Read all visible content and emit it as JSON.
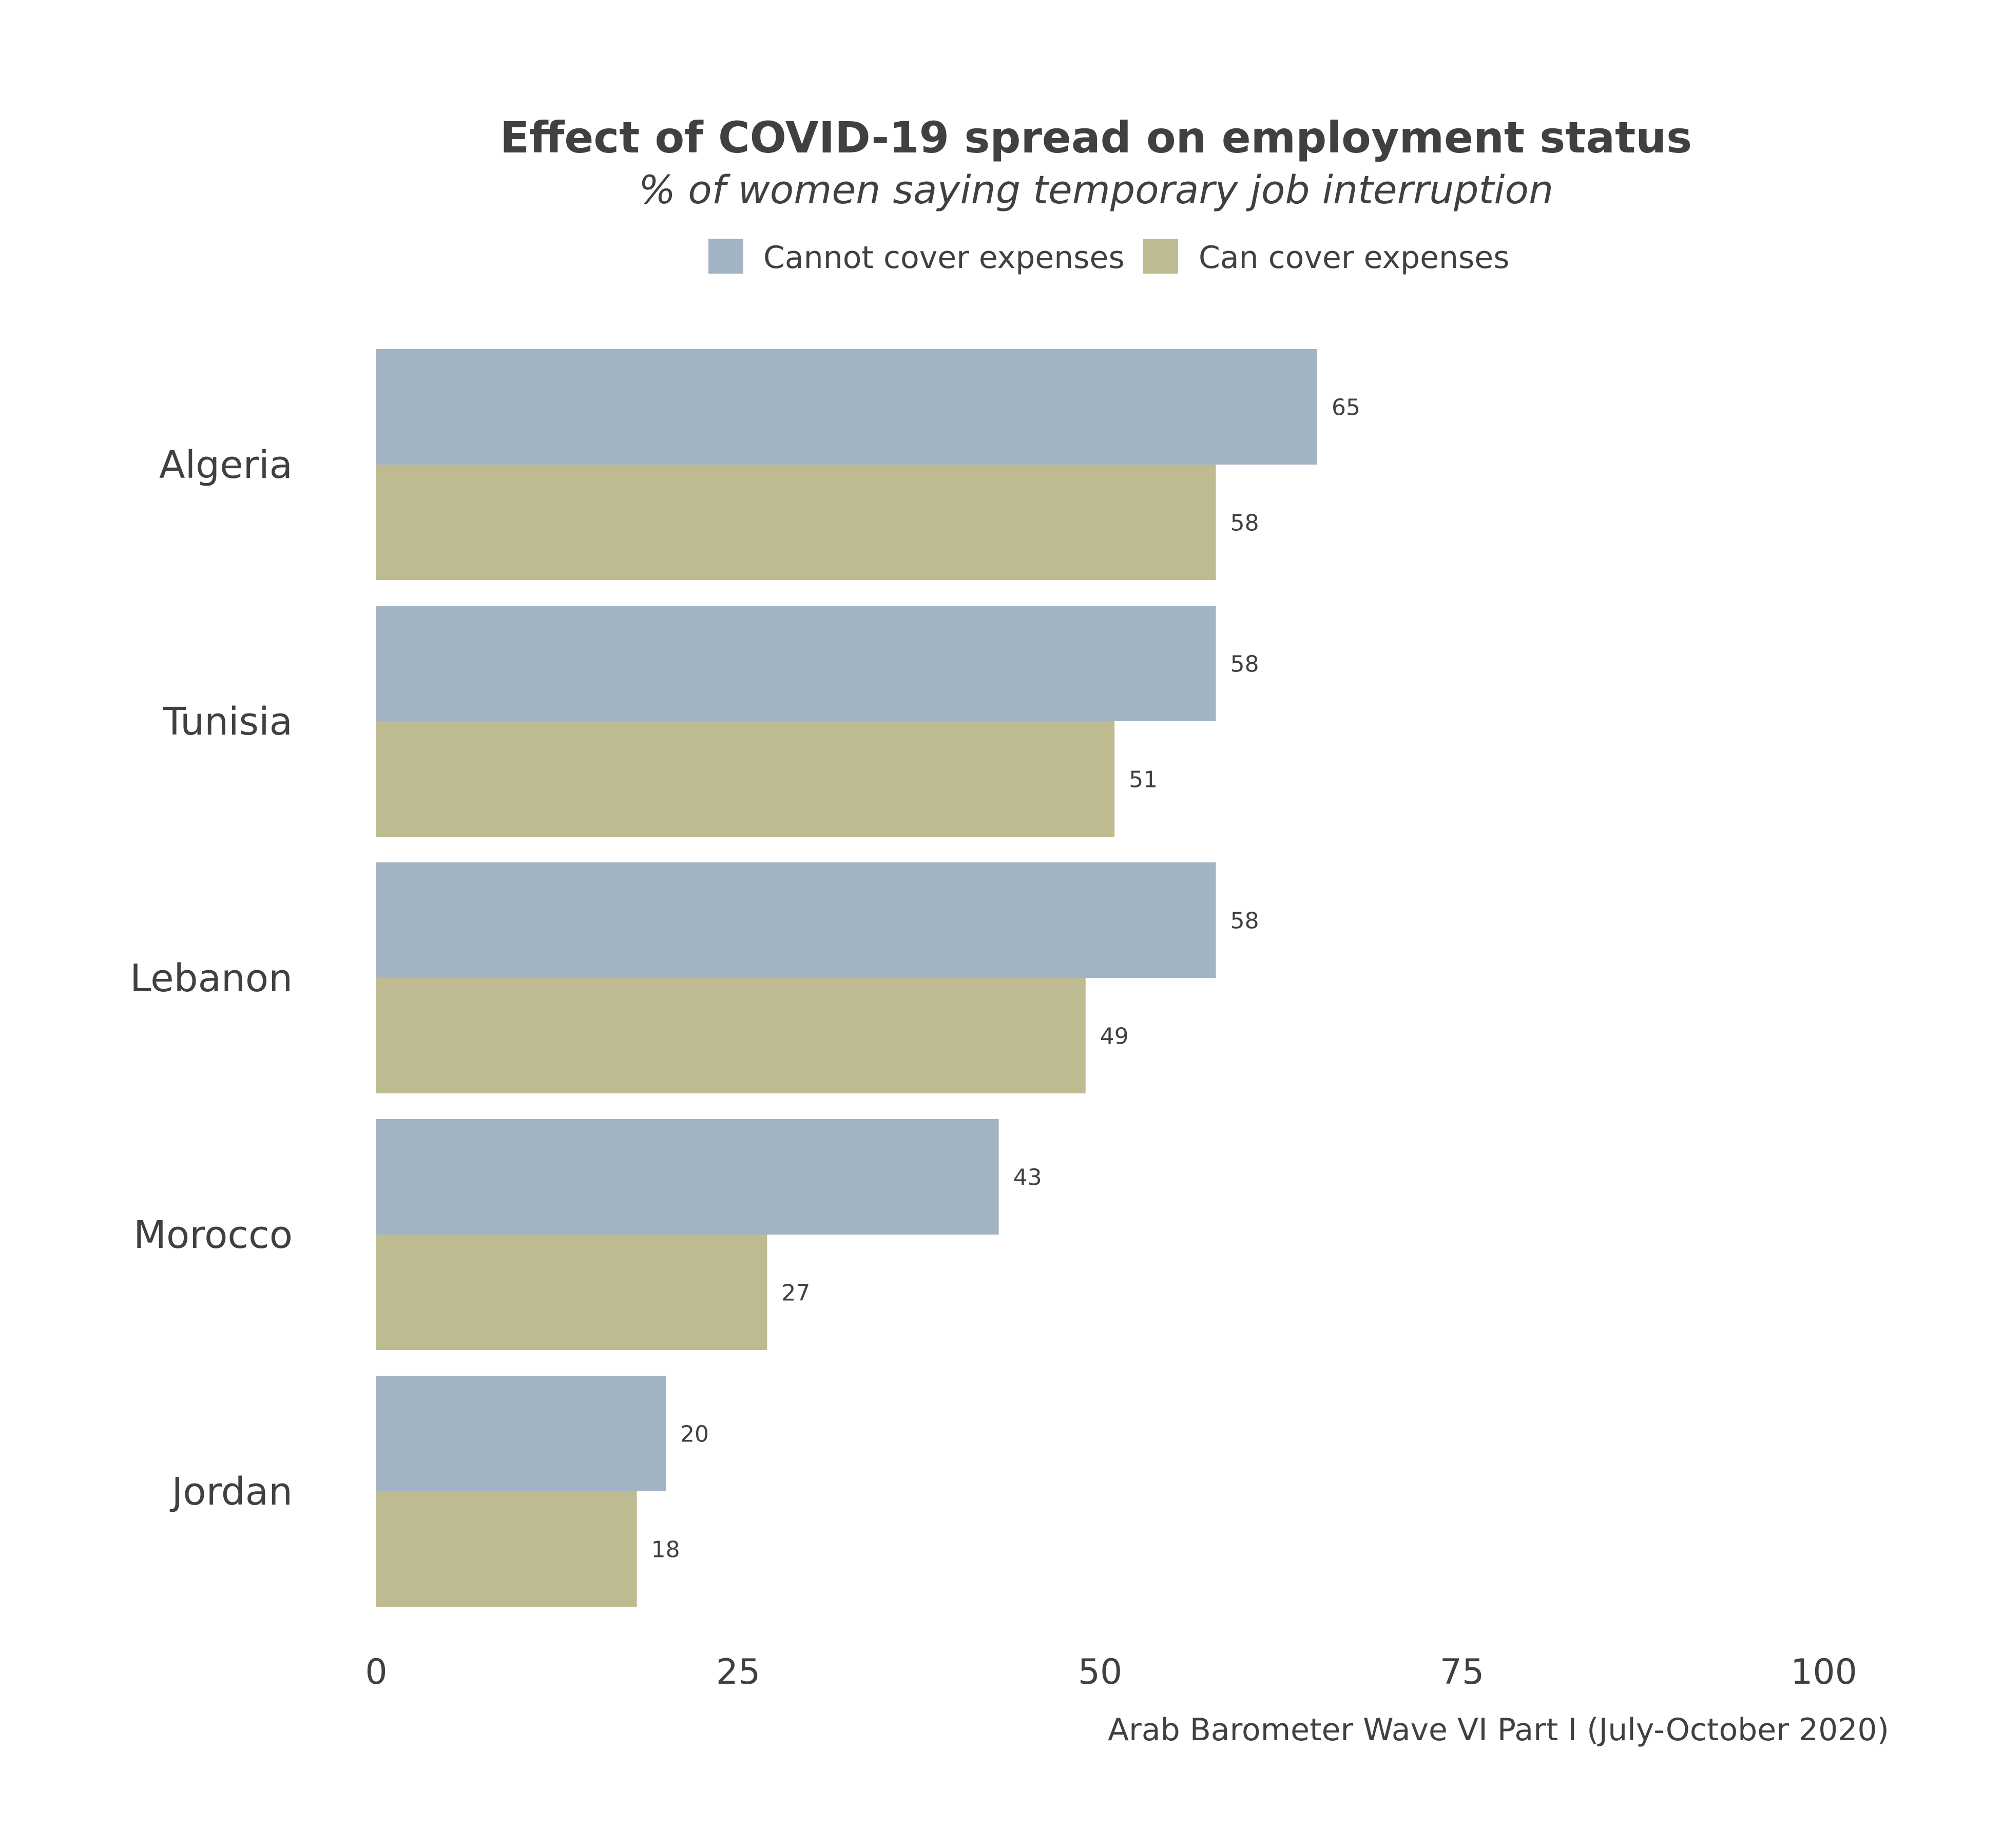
{
  "chart_data": {
    "type": "bar",
    "orientation": "horizontal",
    "title": "Effect of COVID-19 spread on employment status",
    "subtitle": "% of women saying temporary job interruption",
    "caption": "Arab Barometer Wave VI Part I (July-October 2020)",
    "categories": [
      "Algeria",
      "Tunisia",
      "Lebanon",
      "Morocco",
      "Jordan"
    ],
    "series": [
      {
        "name": "Cannot cover expenses",
        "color": "#a2b4c3",
        "values": [
          65,
          58,
          58,
          43,
          20
        ]
      },
      {
        "name": "Can cover expenses",
        "color": "#bebb90",
        "values": [
          58,
          51,
          49,
          27,
          18
        ]
      }
    ],
    "xlim": [
      0,
      100
    ],
    "xticks": [
      "0",
      "25",
      "50",
      "75",
      "100"
    ],
    "xlabel": "",
    "ylabel": "",
    "legend_position": "top",
    "grid": false
  }
}
